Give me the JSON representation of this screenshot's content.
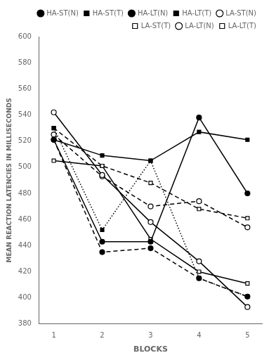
{
  "chart_data": {
    "type": "line",
    "x_label": "BLOCKS",
    "y_label": "MEAN REACTION LATENCIES IN MILLISECONDS",
    "x": [
      1,
      2,
      3,
      4,
      5
    ],
    "series": [
      {
        "name": "HA-ST(N)",
        "color": "black",
        "marker": "circle",
        "line_style": "solid",
        "values": [
          521,
          443,
          443,
          538,
          480
        ]
      },
      {
        "name": "HA-ST(T)",
        "color": "black",
        "marker": "square",
        "line_style": "solid",
        "values": [
          521,
          509,
          505,
          527,
          521
        ]
      },
      {
        "name": "HA-LT(N)",
        "color": "black",
        "marker": "circle",
        "line_style": "dashed",
        "values": [
          521,
          435,
          438,
          415,
          401
        ]
      },
      {
        "name": "HA-LT(T)",
        "color": "black",
        "marker": "square",
        "line_style": "dotted",
        "values": [
          530,
          452,
          505,
          415,
          401
        ]
      },
      {
        "name": "LA-ST(N)",
        "color": "black",
        "marker": "open-circle",
        "line_style": "solid",
        "values": [
          542,
          494,
          458,
          428,
          393
        ]
      },
      {
        "name": "LA-ST(T)",
        "color": "black",
        "marker": "open-square",
        "line_style": "solid",
        "values": [
          505,
          501,
          445,
          420,
          411
        ]
      },
      {
        "name": "LA-LT(N)",
        "color": "black",
        "marker": "open-circle",
        "line_style": "dashed",
        "values": [
          525,
          493,
          470,
          474,
          454
        ]
      },
      {
        "name": "LA-LT(T)",
        "color": "black",
        "marker": "open-square",
        "line_style": "dashed",
        "values": [
          530,
          501,
          488,
          468,
          461
        ]
      }
    ],
    "xlim": [
      0.7,
      5.3
    ],
    "xticks": [
      1,
      2,
      3,
      4,
      5
    ],
    "ylim": [
      380,
      600
    ],
    "yticks": [
      380,
      400,
      420,
      440,
      460,
      480,
      500,
      520,
      540,
      560,
      580,
      600
    ],
    "grid": false,
    "legend": "upper right"
  }
}
